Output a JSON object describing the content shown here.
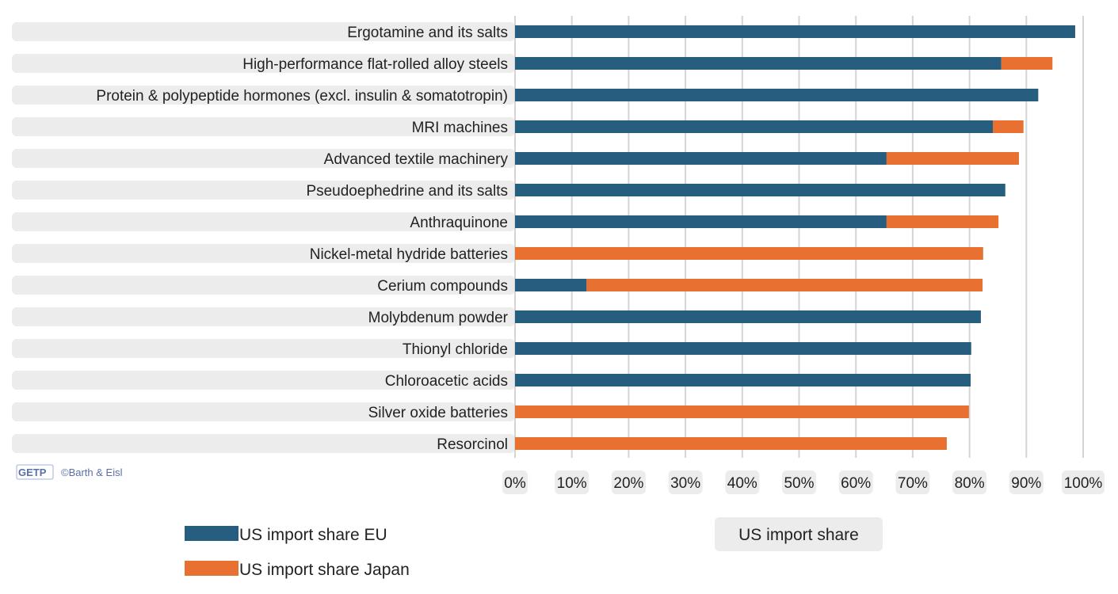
{
  "chart_data": {
    "type": "bar",
    "orientation": "horizontal",
    "stacked": true,
    "categories": [
      "Ergotamine and its salts",
      "High-performance flat-rolled alloy steels",
      "Protein & polypeptide hormones (excl. insulin & somatotropin)",
      "MRI machines",
      "Advanced textile machinery",
      "Pseudoephedrine and its salts",
      "Anthraquinone",
      "Nickel-metal hydride batteries",
      "Cerium compounds",
      "Molybdenum powder",
      "Thionyl chloride",
      "Chloroacetic acids",
      "Silver oxide batteries",
      "Resorcinol"
    ],
    "series": [
      {
        "name": "US import share EU",
        "color": "#275d7e",
        "values": [
          98.6,
          85.6,
          92.1,
          84.1,
          65.4,
          86.3,
          65.4,
          0,
          12.6,
          82.0,
          80.3,
          80.2,
          0,
          0
        ]
      },
      {
        "name": "US import share Japan",
        "color": "#e87132",
        "values": [
          0,
          9.0,
          0,
          5.4,
          23.3,
          0,
          19.7,
          82.4,
          69.7,
          0,
          0,
          0,
          79.9,
          76.0
        ]
      }
    ],
    "xlabel": "US import share",
    "ylabel": "",
    "xlim": [
      0,
      100
    ],
    "xticks": [
      "0%",
      "10%",
      "20%",
      "30%",
      "40%",
      "50%",
      "60%",
      "70%",
      "80%",
      "90%",
      "100%"
    ],
    "grid": true,
    "legend_position": "bottom-left"
  },
  "credit": {
    "logo": "GETPO",
    "text": "©Barth & Eisl"
  }
}
